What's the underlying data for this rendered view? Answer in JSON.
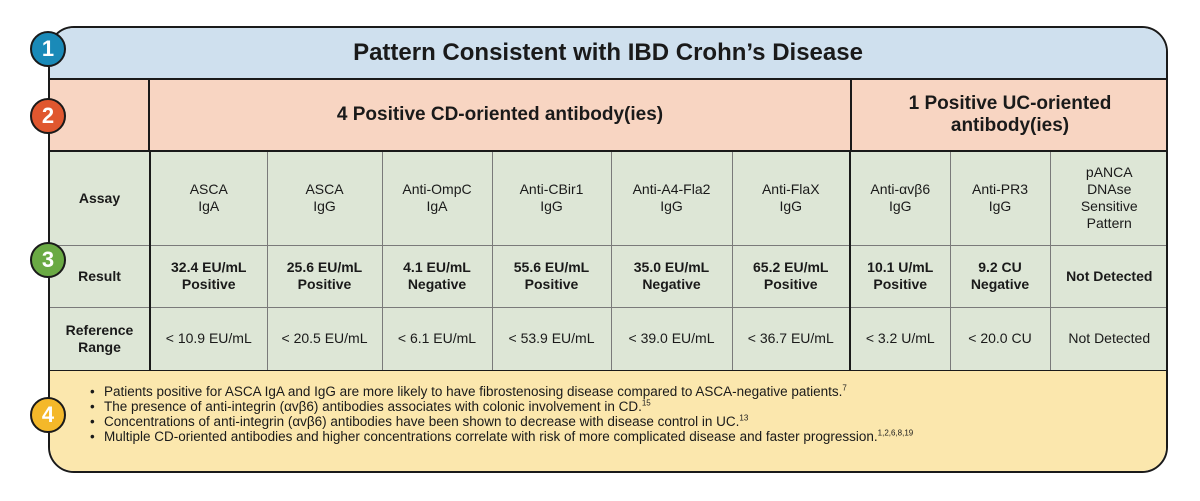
{
  "title": "Pattern Consistent with IBD Crohn’s Disease",
  "badges": [
    "1",
    "2",
    "3",
    "4"
  ],
  "groups": {
    "blank": "",
    "cd": "4 Positive CD-oriented antibody(ies)",
    "uc": "1 Positive UC-oriented antibody(ies)"
  },
  "row_labels": {
    "assay": "Assay",
    "result": "Result",
    "reference": "Reference Range"
  },
  "assays": [
    {
      "name_line1": "ASCA",
      "name_line2": "IgA",
      "name_line3": "",
      "name_line4": "",
      "result_value": "32.4 EU/mL",
      "result_status": "Positive",
      "reference": "< 10.9 EU/mL"
    },
    {
      "name_line1": "ASCA",
      "name_line2": "IgG",
      "name_line3": "",
      "name_line4": "",
      "result_value": "25.6 EU/mL",
      "result_status": "Positive",
      "reference": "< 20.5 EU/mL"
    },
    {
      "name_line1": "Anti-OmpC",
      "name_line2": "IgA",
      "name_line3": "",
      "name_line4": "",
      "result_value": "4.1 EU/mL",
      "result_status": "Negative",
      "reference": "< 6.1 EU/mL"
    },
    {
      "name_line1": "Anti-CBir1",
      "name_line2": "IgG",
      "name_line3": "",
      "name_line4": "",
      "result_value": "55.6 EU/mL",
      "result_status": "Positive",
      "reference": "< 53.9 EU/mL"
    },
    {
      "name_line1": "Anti-A4-Fla2",
      "name_line2": "IgG",
      "name_line3": "",
      "name_line4": "",
      "result_value": "35.0 EU/mL",
      "result_status": "Negative",
      "reference": "< 39.0 EU/mL"
    },
    {
      "name_line1": "Anti-FlaX",
      "name_line2": "IgG",
      "name_line3": "",
      "name_line4": "",
      "result_value": "65.2 EU/mL",
      "result_status": "Positive",
      "reference": "< 36.7 EU/mL"
    },
    {
      "name_line1": "Anti-αvβ6",
      "name_line2": "IgG",
      "name_line3": "",
      "name_line4": "",
      "result_value": "10.1 U/mL",
      "result_status": "Positive",
      "reference": "< 3.2 U/mL"
    },
    {
      "name_line1": "Anti-PR3",
      "name_line2": "IgG",
      "name_line3": "",
      "name_line4": "",
      "result_value": "9.2 CU",
      "result_status": "Negative",
      "reference": "< 20.0 CU"
    },
    {
      "name_line1": "pANCA",
      "name_line2": "DNAse",
      "name_line3": "Sensitive",
      "name_line4": "Pattern",
      "result_value": "Not Detected",
      "result_status": "",
      "reference": "Not Detected"
    }
  ],
  "notes": [
    {
      "text": "Patients positive for ASCA IgA and IgG are more likely to have fibrostenosing disease compared to ASCA-negative patients.",
      "ref": "7"
    },
    {
      "text": "The presence of anti-integrin (αvβ6) antibodies associates with colonic involvement in CD.",
      "ref": "15"
    },
    {
      "text": "Concentrations of anti-integrin (αvβ6) antibodies have been shown to decrease with disease control in UC.",
      "ref": "13"
    },
    {
      "text": "Multiple CD-oriented antibodies and higher concentrations correlate with risk of more complicated disease and faster progression.",
      "ref": "1,2,6,8,19"
    }
  ],
  "colors": {
    "section1": "#cfe0ee",
    "section2": "#f8d5c2",
    "section3": "#dde6d6",
    "section4": "#fbe7ad",
    "badge1": "#1a8ab8",
    "badge2": "#e0572f",
    "badge3": "#6aaa44",
    "badge4": "#f4b82a"
  }
}
